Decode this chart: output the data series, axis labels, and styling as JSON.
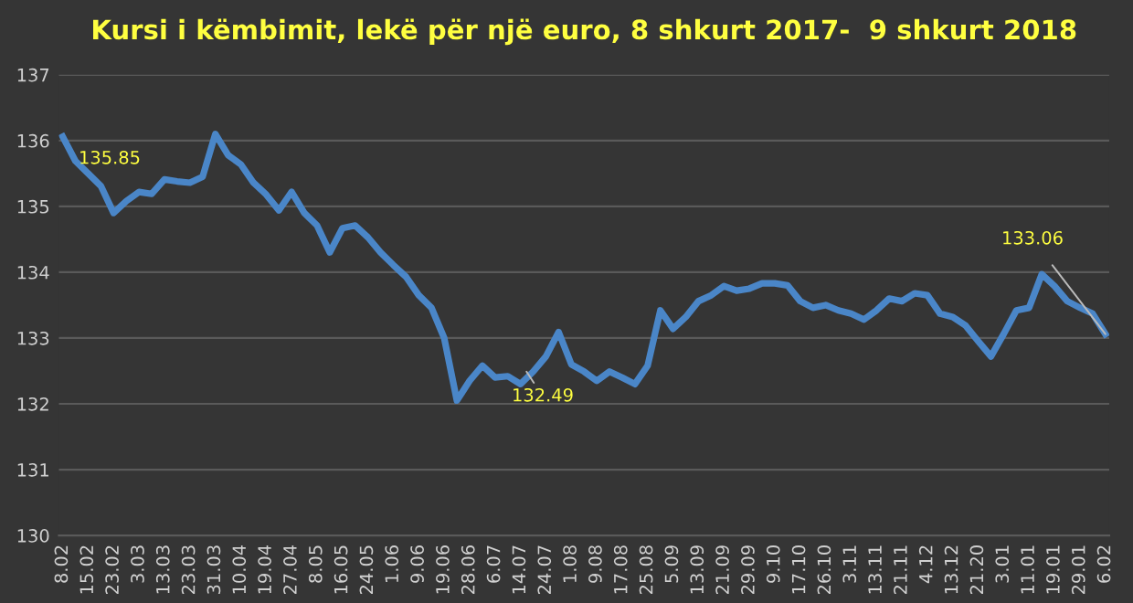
{
  "chart_data": {
    "type": "line",
    "title": "Kursi i këmbimit, lekë për një euro, 8 shkurt 2017-  9 shkurt 2018",
    "categories": [
      "8.02",
      null,
      "15.02",
      null,
      "23.02",
      null,
      "3.03",
      null,
      "13.03",
      null,
      "23.03",
      null,
      "31.03",
      null,
      "10.04",
      null,
      "19.04",
      null,
      "27.04",
      null,
      "8.05",
      null,
      "16.05",
      null,
      "24.05",
      null,
      "1.06",
      null,
      "9.06",
      null,
      "19.06",
      null,
      "28.06",
      null,
      "6.07",
      null,
      "14.07",
      null,
      "24.07",
      null,
      "1.08",
      null,
      "9.08",
      null,
      "17.08",
      null,
      "25.08",
      null,
      "5.09",
      null,
      "13.09",
      null,
      "21.09",
      null,
      "29.09",
      null,
      "9.10",
      null,
      "17.10",
      null,
      "26.10",
      null,
      "3.11",
      null,
      "13.11",
      null,
      "21.11",
      null,
      "4.12",
      null,
      "13.12",
      null,
      "21.20",
      null,
      "3.01",
      null,
      "11.01",
      null,
      "19.01",
      null,
      "29.01",
      null,
      "6.02"
    ],
    "series": [
      {
        "color": "#4a86c8",
        "values": [
          136.06,
          135.69,
          135.5,
          135.31,
          134.9,
          135.08,
          135.22,
          135.19,
          135.41,
          135.38,
          135.36,
          135.45,
          136.1,
          135.78,
          135.64,
          135.36,
          135.18,
          134.94,
          135.22,
          134.9,
          134.71,
          134.3,
          134.67,
          134.71,
          134.53,
          134.3,
          134.11,
          133.93,
          133.65,
          133.46,
          133.0,
          132.05,
          132.35,
          132.58,
          132.4,
          132.42,
          132.3,
          132.49,
          132.72,
          133.09,
          132.6,
          132.49,
          132.35,
          132.49,
          132.4,
          132.3,
          132.58,
          133.42,
          133.14,
          133.32,
          133.56,
          133.65,
          133.79,
          133.72,
          133.75,
          133.83,
          133.83,
          133.8,
          133.56,
          133.46,
          133.5,
          133.42,
          133.37,
          133.28,
          133.42,
          133.6,
          133.56,
          133.68,
          133.65,
          133.37,
          133.32,
          133.19,
          132.95,
          132.72,
          133.06,
          133.42,
          133.46,
          133.97,
          133.79,
          133.56,
          133.46,
          133.37,
          133.06
        ]
      }
    ],
    "ylim": [
      130,
      137
    ],
    "yticks": [
      130,
      131,
      132,
      133,
      134,
      135,
      136,
      137
    ],
    "grid": "y",
    "marker": "none",
    "line_style": "solid",
    "annotations": [
      "135.85",
      {
        "text": "132.49",
        "y": 132.49
      },
      {
        "text": "133.06",
        "x": "6.02",
        "y": 133.06
      }
    ]
  }
}
